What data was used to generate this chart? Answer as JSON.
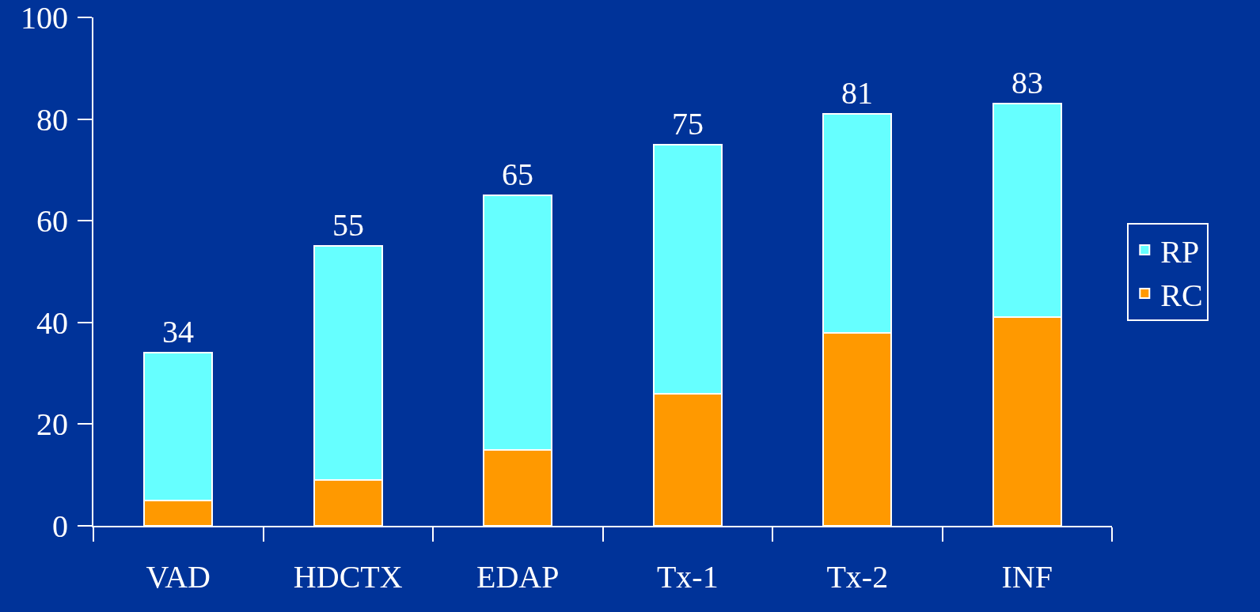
{
  "chart_data": {
    "type": "bar",
    "stacked": true,
    "categories": [
      "VAD",
      "HDCTX",
      "EDAP",
      "Tx-1",
      "Tx-2",
      "INF"
    ],
    "series": [
      {
        "name": "RC",
        "color": "#ff9900",
        "values": [
          5,
          9,
          15,
          26,
          38,
          41
        ]
      },
      {
        "name": "RP",
        "color": "#66ffff",
        "values": [
          29,
          46,
          50,
          49,
          43,
          42
        ]
      }
    ],
    "totals": [
      "34",
      "55",
      "65",
      "75",
      "81",
      "83"
    ],
    "ylim": [
      0,
      100
    ],
    "yticks": [
      0,
      20,
      40,
      60,
      80,
      100
    ],
    "grid": false,
    "legend": "right"
  }
}
